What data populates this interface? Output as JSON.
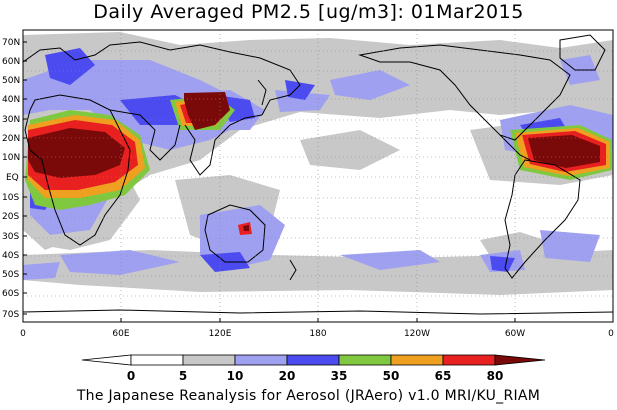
{
  "title": "Daily Averaged PM2.5 [ug/m3]: 01Mar2015",
  "footer": "The Japanese Reanalysis for Aerosol (JRAero) v1.0 MRI/KU_RIAM",
  "map": {
    "lat_labels": [
      "70N",
      "60N",
      "50N",
      "40N",
      "30N",
      "20N",
      "10N",
      "EQ",
      "10S",
      "20S",
      "30S",
      "40S",
      "50S",
      "60S",
      "70S"
    ],
    "lon_labels": [
      "0",
      "60E",
      "120E",
      "180",
      "120W",
      "60W",
      "0"
    ],
    "colors": {
      "ocean": "#ffffff",
      "land_line": "#000000",
      "c5": "#c8c8c8",
      "c10": "#a0a0f0",
      "c20": "#4b4bf0",
      "c35": "#80c840",
      "c50": "#f0a020",
      "c65": "#e82020",
      "c80": "#7a0a0a"
    }
  },
  "colorbar": {
    "levels": [
      "0",
      "5",
      "10",
      "20",
      "35",
      "50",
      "65",
      "80"
    ],
    "colors": [
      "#ffffff",
      "#c8c8c8",
      "#a0a0f0",
      "#4b4bf0",
      "#80c840",
      "#f0a020",
      "#e82020",
      "#7a0a0a"
    ]
  }
}
